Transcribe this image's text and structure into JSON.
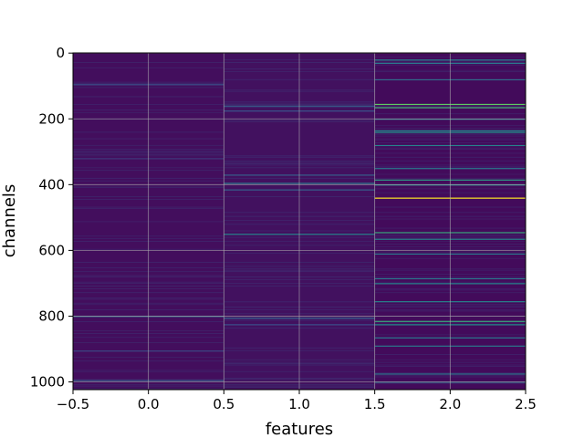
{
  "chart_data": {
    "type": "heatmap",
    "title": "",
    "xlabel": "features",
    "ylabel": "channels",
    "xlim": [
      -0.5,
      2.5
    ],
    "ylim": [
      1023.5,
      -0.5
    ],
    "y_inverted": true,
    "grid": true,
    "colormap": "viridis",
    "x_ticks": [
      -0.5,
      0.0,
      0.5,
      1.0,
      1.5,
      2.0,
      2.5
    ],
    "x_tick_labels": [
      "−0.5",
      "0.0",
      "0.5",
      "1.0",
      "1.5",
      "2.0",
      "2.5"
    ],
    "y_ticks": [
      0,
      200,
      400,
      600,
      800,
      1000
    ],
    "y_tick_labels": [
      "0",
      "200",
      "400",
      "600",
      "800",
      "1000"
    ],
    "n_rows": 1024,
    "columns": [
      0,
      1,
      2
    ],
    "column_base_level": [
      0.04,
      0.05,
      0.03
    ],
    "highlights": [
      {
        "column": 0,
        "channel": 95,
        "level": 0.25
      },
      {
        "column": 0,
        "channel": 320,
        "level": 0.18
      },
      {
        "column": 0,
        "channel": 800,
        "level": 0.35
      },
      {
        "column": 0,
        "channel": 905,
        "level": 0.22
      },
      {
        "column": 0,
        "channel": 995,
        "level": 0.3
      },
      {
        "column": 1,
        "channel": 160,
        "level": 0.3
      },
      {
        "column": 1,
        "channel": 175,
        "level": 0.25
      },
      {
        "column": 1,
        "channel": 370,
        "level": 0.3
      },
      {
        "column": 1,
        "channel": 395,
        "level": 0.4
      },
      {
        "column": 1,
        "channel": 415,
        "level": 0.3
      },
      {
        "column": 1,
        "channel": 550,
        "level": 0.45
      },
      {
        "column": 1,
        "channel": 805,
        "level": 0.3
      },
      {
        "column": 1,
        "channel": 825,
        "level": 0.25
      },
      {
        "column": 2,
        "channel": 20,
        "level": 0.45
      },
      {
        "column": 2,
        "channel": 30,
        "level": 0.4
      },
      {
        "column": 2,
        "channel": 80,
        "level": 0.35
      },
      {
        "column": 2,
        "channel": 155,
        "level": 0.75
      },
      {
        "column": 2,
        "channel": 165,
        "level": 0.65
      },
      {
        "column": 2,
        "channel": 200,
        "level": 0.4
      },
      {
        "column": 2,
        "channel": 235,
        "level": 0.45
      },
      {
        "column": 2,
        "channel": 240,
        "level": 0.5
      },
      {
        "column": 2,
        "channel": 280,
        "level": 0.45
      },
      {
        "column": 2,
        "channel": 350,
        "level": 0.4
      },
      {
        "column": 2,
        "channel": 385,
        "level": 0.55
      },
      {
        "column": 2,
        "channel": 400,
        "level": 0.5
      },
      {
        "column": 2,
        "channel": 440,
        "level": 1.0
      },
      {
        "column": 2,
        "channel": 545,
        "level": 0.6
      },
      {
        "column": 2,
        "channel": 565,
        "level": 0.45
      },
      {
        "column": 2,
        "channel": 610,
        "level": 0.4
      },
      {
        "column": 2,
        "channel": 685,
        "level": 0.4
      },
      {
        "column": 2,
        "channel": 700,
        "level": 0.45
      },
      {
        "column": 2,
        "channel": 755,
        "level": 0.45
      },
      {
        "column": 2,
        "channel": 815,
        "level": 0.6
      },
      {
        "column": 2,
        "channel": 825,
        "level": 0.5
      },
      {
        "column": 2,
        "channel": 865,
        "level": 0.4
      },
      {
        "column": 2,
        "channel": 890,
        "level": 0.4
      },
      {
        "column": 2,
        "channel": 975,
        "level": 0.4
      },
      {
        "column": 2,
        "channel": 1000,
        "level": 0.35
      }
    ]
  }
}
